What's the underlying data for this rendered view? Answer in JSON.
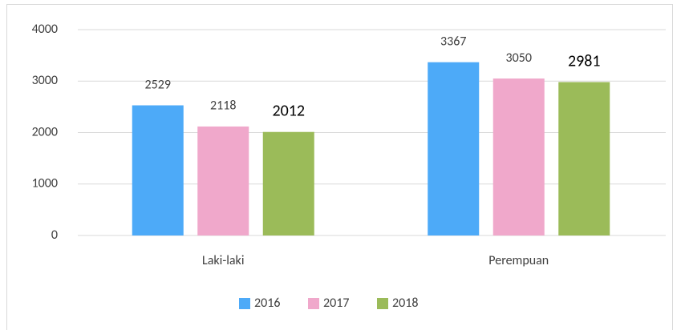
{
  "chart_data": {
    "type": "bar",
    "categories": [
      "Laki-laki",
      "Perempuan"
    ],
    "series": [
      {
        "name": "2016",
        "color": "#4daaf8",
        "values": [
          2529,
          3367
        ]
      },
      {
        "name": "2017",
        "color": "#f0a8cb",
        "values": [
          2118,
          3050
        ]
      },
      {
        "name": "2018",
        "color": "#9bbb59",
        "values": [
          2012,
          2981
        ]
      }
    ],
    "ylim": [
      0,
      4000
    ],
    "yticks": [
      0,
      1000,
      2000,
      3000,
      4000
    ],
    "grid": true,
    "legend": "bottom"
  }
}
